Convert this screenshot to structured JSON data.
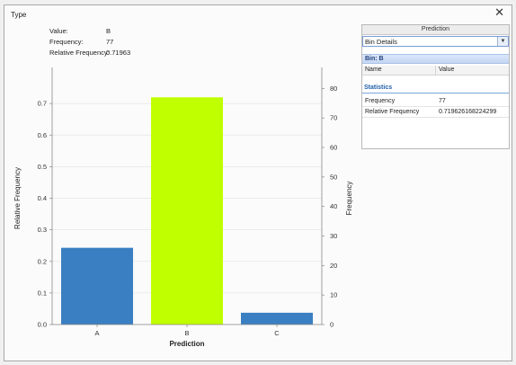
{
  "window": {
    "title": "Type"
  },
  "info": [
    {
      "label": "Value:",
      "value": "B"
    },
    {
      "label": "Frequency:",
      "value": "77"
    },
    {
      "label": "Relative Frequency:",
      "value": "0.71963"
    }
  ],
  "panel": {
    "header": "Prediction",
    "dropdown_value": "Bin Details",
    "bin_title": "Bin: B",
    "columns": [
      "Name",
      "Value"
    ],
    "section": "Statistics",
    "rows": [
      {
        "name": "Frequency",
        "value": "77"
      },
      {
        "name": "Relative Frequency",
        "value": "0.719626168224299"
      }
    ]
  },
  "icons": {
    "close": "close-icon",
    "dropdown": "chevron-down-icon"
  },
  "chart_data": {
    "type": "bar",
    "categories": [
      "A",
      "B",
      "C"
    ],
    "values": [
      0.243,
      0.71963,
      0.0374
    ],
    "frequencies": [
      26,
      77,
      4
    ],
    "xlabel": "Prediction",
    "ylabel": "Relative Frequency",
    "y2label": "Frequency",
    "ylim": [
      0,
      0.8
    ],
    "y2lim": [
      0,
      85.6
    ],
    "yticks": [
      "0.0",
      "0.1",
      "0.2",
      "0.3",
      "0.4",
      "0.5",
      "0.6",
      "0.7"
    ],
    "y2ticks": [
      "0",
      "10",
      "20",
      "30",
      "40",
      "50",
      "60",
      "70",
      "80"
    ],
    "colors": [
      "#3a7fc1",
      "#c0ff00",
      "#3a7fc1"
    ],
    "grid": true
  }
}
